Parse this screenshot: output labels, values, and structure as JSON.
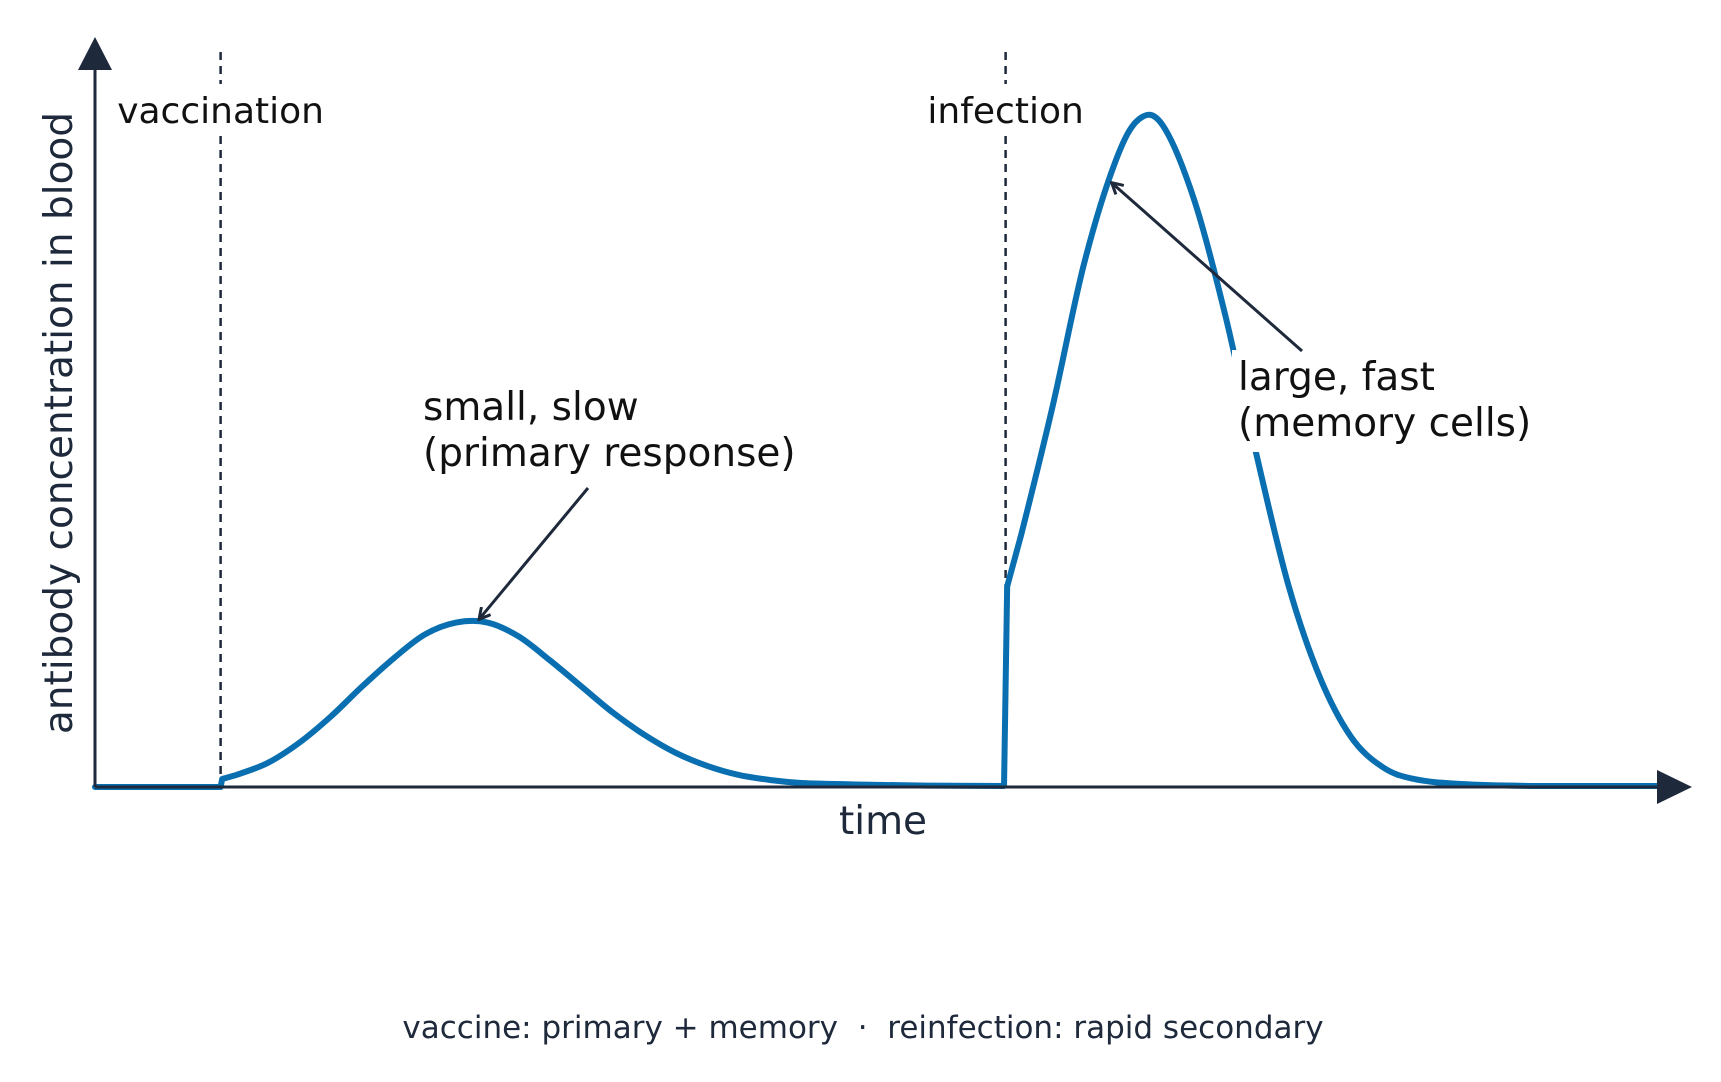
{
  "chart_data": {
    "type": "line",
    "title": "",
    "xlabel": "time",
    "ylabel": "antibody concentration in blood",
    "caption": "vaccine: primary + memory  ·  reinfection: rapid secondary",
    "x_ticks": "none",
    "y_ticks": "none",
    "grid": false,
    "events": [
      {
        "label": "vaccination",
        "x": 8
      },
      {
        "label": "infection",
        "x": 58
      }
    ],
    "series": [
      {
        "color": "#0a6fb0",
        "points": [
          [
            0,
            0
          ],
          [
            8,
            0
          ],
          [
            8.1,
            0.4
          ],
          [
            9,
            0.6
          ],
          [
            11,
            1.2
          ],
          [
            13,
            2.2
          ],
          [
            15,
            3.5
          ],
          [
            17,
            5
          ],
          [
            19,
            6.4
          ],
          [
            21,
            7.6
          ],
          [
            23,
            8.2
          ],
          [
            25,
            8.2
          ],
          [
            27,
            7.5
          ],
          [
            29,
            6.3
          ],
          [
            31,
            5
          ],
          [
            33,
            3.7
          ],
          [
            35,
            2.6
          ],
          [
            37,
            1.7
          ],
          [
            39,
            1.05
          ],
          [
            41,
            0.6
          ],
          [
            43,
            0.35
          ],
          [
            45,
            0.2
          ],
          [
            49,
            0.12
          ],
          [
            53,
            0.07
          ],
          [
            57.9,
            0.05
          ],
          [
            58.1,
            10
          ],
          [
            59,
            12.6
          ],
          [
            61,
            19
          ],
          [
            63,
            26.1
          ],
          [
            65,
            31.2
          ],
          [
            66.5,
            33.3
          ],
          [
            68,
            33
          ],
          [
            70,
            29.3
          ],
          [
            72,
            23.5
          ],
          [
            74,
            16.5
          ],
          [
            76,
            10.1
          ],
          [
            78,
            5.5
          ],
          [
            80,
            2.5
          ],
          [
            82,
            1
          ],
          [
            84,
            0.4
          ],
          [
            87,
            0.15
          ],
          [
            92,
            0.05
          ],
          [
            100,
            0.05
          ]
        ]
      }
    ],
    "annotations": [
      {
        "lines": [
          "small, slow",
          "(primary response)"
        ],
        "points_to": [
          24.5,
          8.4
        ]
      },
      {
        "lines": [
          "large, fast",
          "(memory cells)"
        ],
        "points_to": [
          64.8,
          30.1
        ]
      }
    ],
    "xlim": [
      0,
      100
    ],
    "ylim": [
      0,
      36
    ]
  }
}
